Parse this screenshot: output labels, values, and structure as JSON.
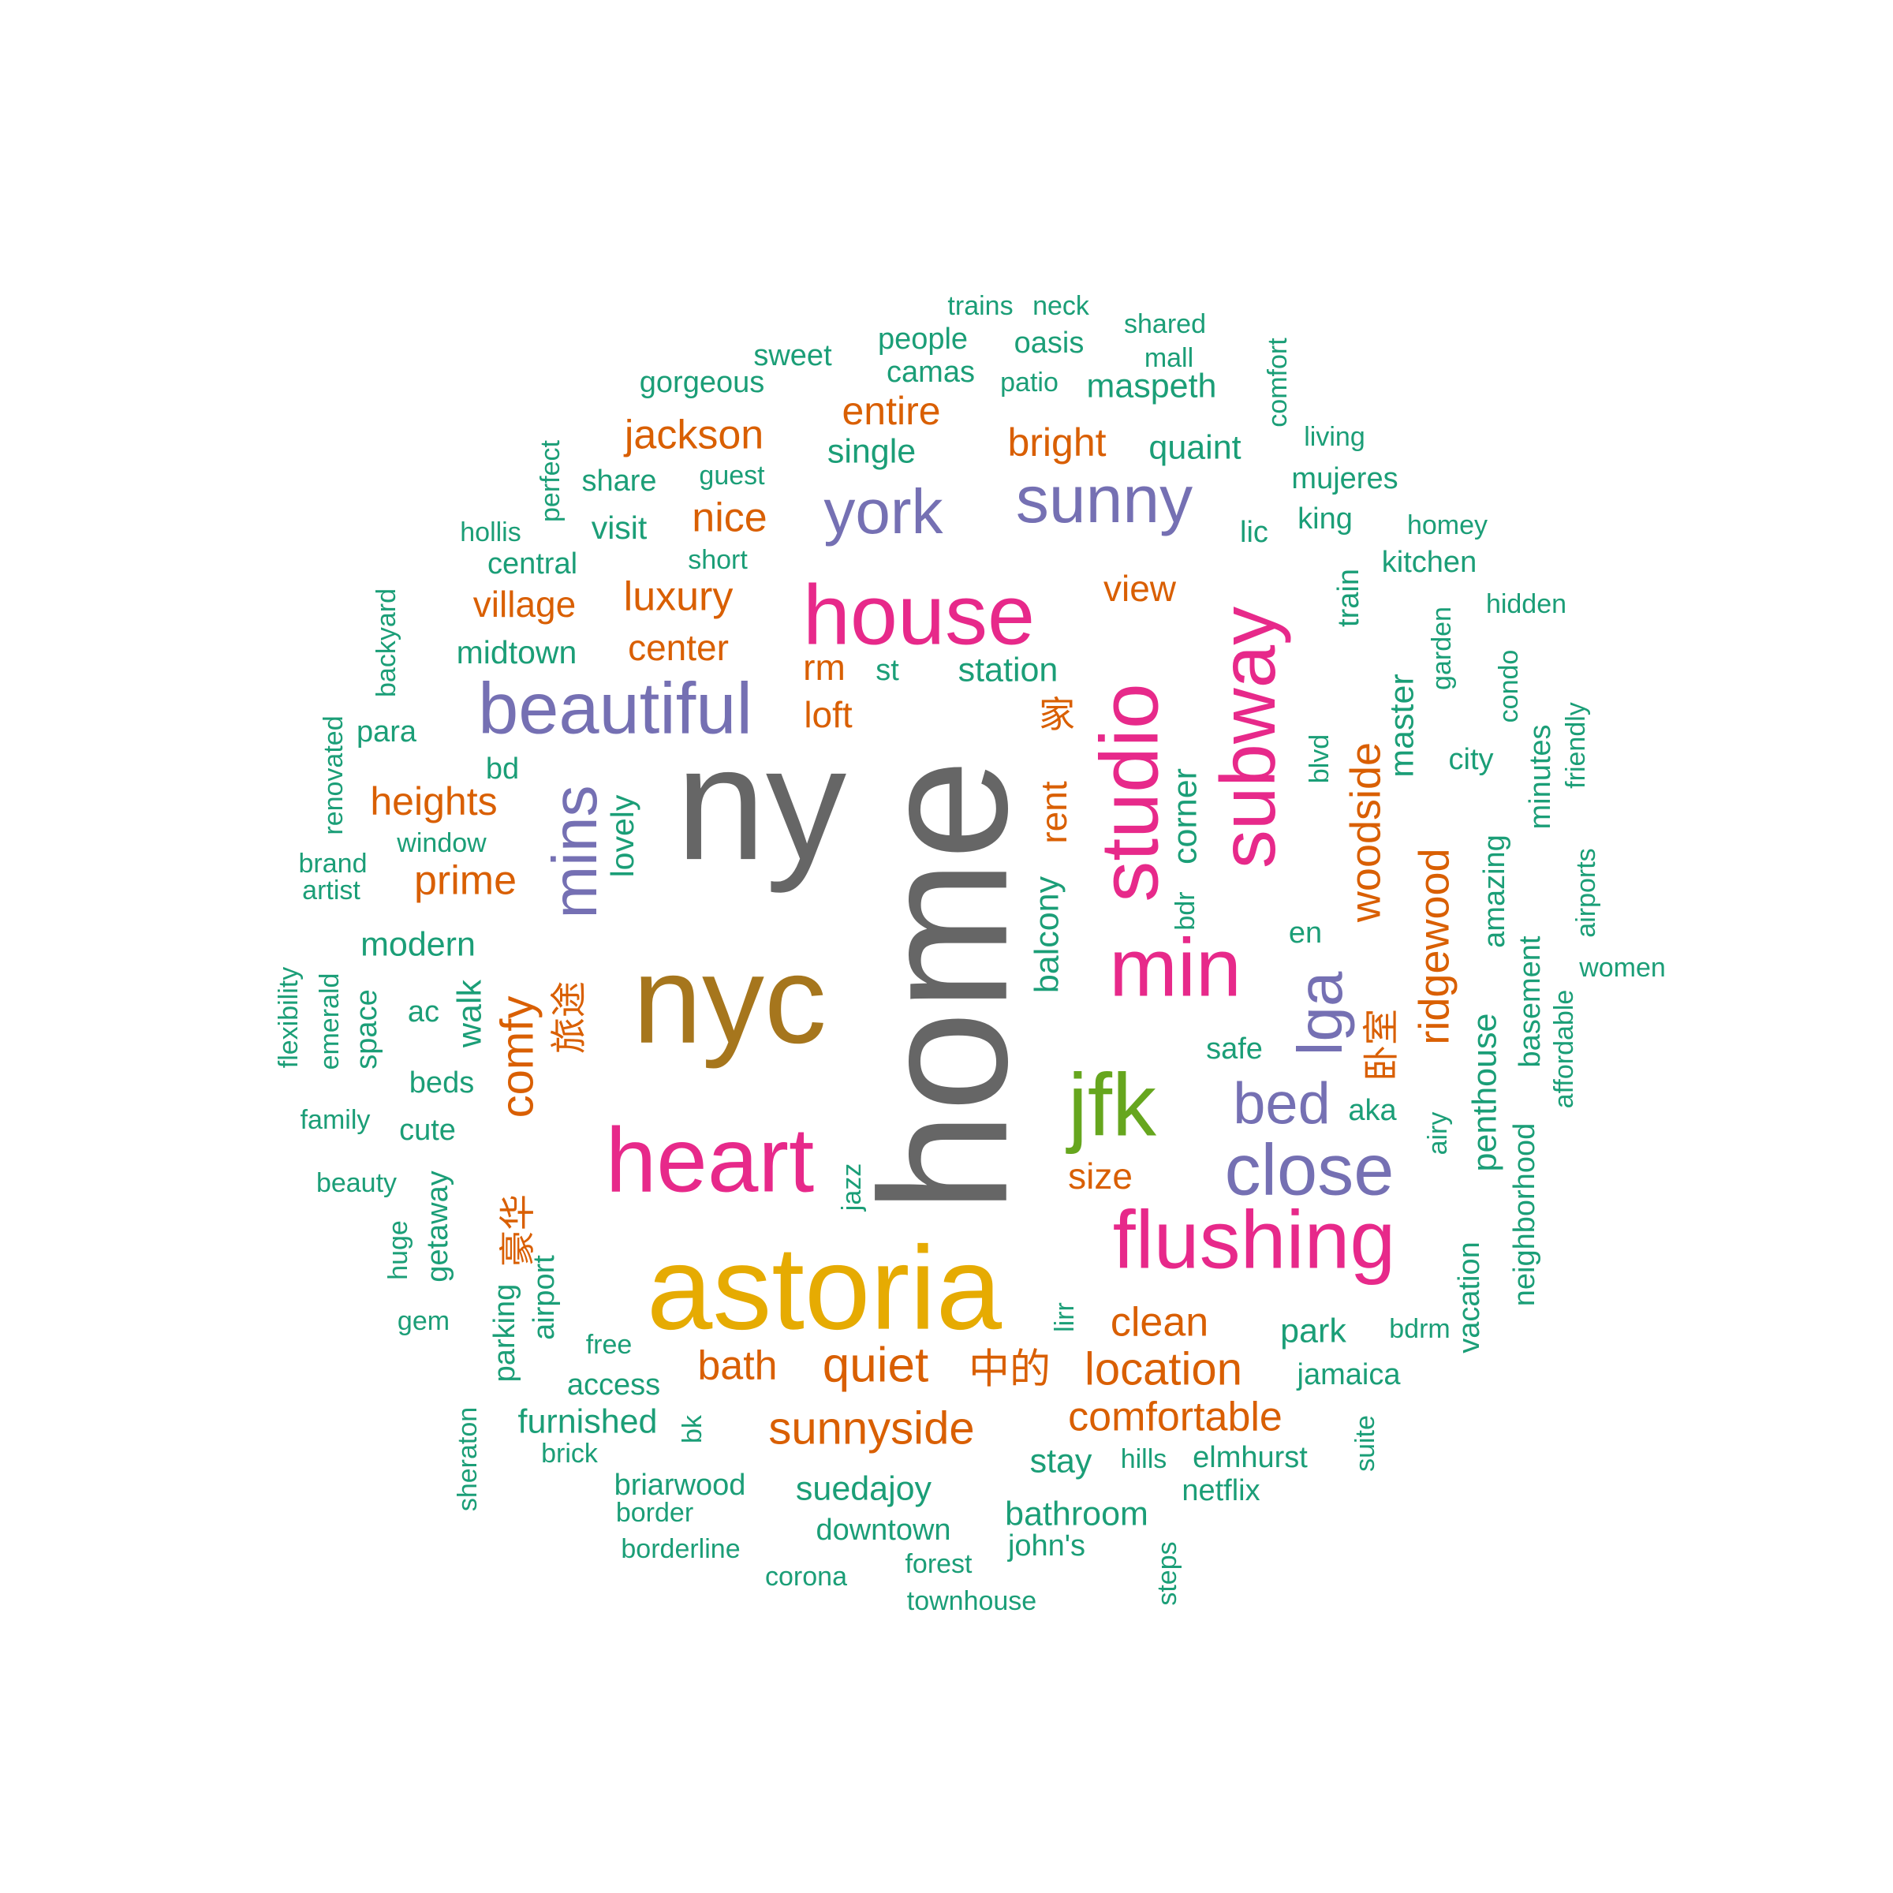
{
  "colors": {
    "gray": "#666666",
    "magenta": "#e7298a",
    "purple": "#7570b3",
    "mustard": "#a6761d",
    "gold": "#e6ab02",
    "green": "#66a61e",
    "orange": "#d95f02",
    "teal": "#1b9e77"
  },
  "words": [
    {
      "text": "home",
      "weight": 100,
      "color": "gray"
    },
    {
      "text": "ny",
      "weight": 62,
      "color": "gray"
    },
    {
      "text": "nyc",
      "weight": 48,
      "color": "mustard"
    },
    {
      "text": "astoria",
      "weight": 45,
      "color": "gold"
    },
    {
      "text": "heart",
      "weight": 35,
      "color": "magenta"
    },
    {
      "text": "house",
      "weight": 33,
      "color": "magenta"
    },
    {
      "text": "studio",
      "weight": 32,
      "color": "magenta"
    },
    {
      "text": "min",
      "weight": 32,
      "color": "magenta"
    },
    {
      "text": "jfk",
      "weight": 34,
      "color": "green"
    },
    {
      "text": "flushing",
      "weight": 32,
      "color": "magenta"
    },
    {
      "text": "subway",
      "weight": 30,
      "color": "magenta"
    },
    {
      "text": "beautiful",
      "weight": 28,
      "color": "purple"
    },
    {
      "text": "close",
      "weight": 28,
      "color": "purple"
    },
    {
      "text": "sunny",
      "weight": 25,
      "color": "purple"
    },
    {
      "text": "york",
      "weight": 24,
      "color": "purple"
    },
    {
      "text": "mins",
      "weight": 24,
      "color": "purple"
    },
    {
      "text": "lga",
      "weight": 24,
      "color": "purple"
    },
    {
      "text": "bed",
      "weight": 22,
      "color": "purple"
    },
    {
      "text": "quiet",
      "weight": 18,
      "color": "orange"
    },
    {
      "text": "sunnyside",
      "weight": 17,
      "color": "orange"
    },
    {
      "text": "location",
      "weight": 17,
      "color": "orange"
    },
    {
      "text": "comfy",
      "weight": 17,
      "color": "orange"
    },
    {
      "text": "ridgewood",
      "weight": 16,
      "color": "orange"
    },
    {
      "text": "woodside",
      "weight": 16,
      "color": "orange"
    },
    {
      "text": "comfortable",
      "weight": 15,
      "color": "orange"
    },
    {
      "text": "jackson",
      "weight": 15,
      "color": "orange"
    },
    {
      "text": "bath",
      "weight": 15,
      "color": "orange"
    },
    {
      "text": "中的",
      "weight": 15,
      "color": "orange"
    },
    {
      "text": "clean",
      "weight": 15,
      "color": "orange"
    },
    {
      "text": "nice",
      "weight": 15,
      "color": "orange"
    },
    {
      "text": "luxury",
      "weight": 15,
      "color": "orange"
    },
    {
      "text": "prime",
      "weight": 15,
      "color": "orange"
    },
    {
      "text": "heights",
      "weight": 14,
      "color": "orange"
    },
    {
      "text": "bright",
      "weight": 14,
      "color": "orange"
    },
    {
      "text": "entire",
      "weight": 14,
      "color": "orange"
    },
    {
      "text": "village",
      "weight": 13,
      "color": "orange"
    },
    {
      "text": "view",
      "weight": 13,
      "color": "orange"
    },
    {
      "text": "center",
      "weight": 13,
      "color": "orange"
    },
    {
      "text": "loft",
      "weight": 13,
      "color": "orange"
    },
    {
      "text": "rm",
      "weight": 13,
      "color": "orange"
    },
    {
      "text": "rent",
      "weight": 13,
      "color": "orange"
    },
    {
      "text": "size",
      "weight": 13,
      "color": "orange"
    },
    {
      "text": "卧室",
      "weight": 13,
      "color": "orange"
    },
    {
      "text": "旅途",
      "weight": 13,
      "color": "orange"
    },
    {
      "text": "豪华",
      "weight": 13,
      "color": "orange"
    },
    {
      "text": "家",
      "weight": 13,
      "color": "orange"
    },
    {
      "text": "modern",
      "weight": 12,
      "color": "teal"
    },
    {
      "text": "walk",
      "weight": 12,
      "color": "teal"
    },
    {
      "text": "station",
      "weight": 12,
      "color": "teal"
    },
    {
      "text": "single",
      "weight": 12,
      "color": "teal"
    },
    {
      "text": "quaint",
      "weight": 12,
      "color": "teal"
    },
    {
      "text": "maspeth",
      "weight": 12,
      "color": "teal"
    },
    {
      "text": "balcony",
      "weight": 12,
      "color": "teal"
    },
    {
      "text": "corner",
      "weight": 12,
      "color": "teal"
    },
    {
      "text": "master",
      "weight": 12,
      "color": "teal"
    },
    {
      "text": "penthouse",
      "weight": 12,
      "color": "teal"
    },
    {
      "text": "park",
      "weight": 12,
      "color": "teal"
    },
    {
      "text": "stay",
      "weight": 12,
      "color": "teal"
    },
    {
      "text": "suedajoy",
      "weight": 12,
      "color": "teal"
    },
    {
      "text": "bathroom",
      "weight": 12,
      "color": "teal"
    },
    {
      "text": "furnished",
      "weight": 12,
      "color": "teal"
    },
    {
      "text": "midtown",
      "weight": 11,
      "color": "teal"
    },
    {
      "text": "visit",
      "weight": 11,
      "color": "teal"
    },
    {
      "text": "lovely",
      "weight": 11,
      "color": "teal"
    },
    {
      "text": "sweet",
      "weight": 10,
      "color": "teal"
    },
    {
      "text": "gorgeous",
      "weight": 10,
      "color": "teal"
    },
    {
      "text": "people",
      "weight": 10,
      "color": "teal"
    },
    {
      "text": "camas",
      "weight": 10,
      "color": "teal"
    },
    {
      "text": "oasis",
      "weight": 10,
      "color": "teal"
    },
    {
      "text": "share",
      "weight": 10,
      "color": "teal"
    },
    {
      "text": "central",
      "weight": 10,
      "color": "teal"
    },
    {
      "text": "st",
      "weight": 10,
      "color": "teal"
    },
    {
      "text": "lic",
      "weight": 10,
      "color": "teal"
    },
    {
      "text": "mujeres",
      "weight": 10,
      "color": "teal"
    },
    {
      "text": "king",
      "weight": 10,
      "color": "teal"
    },
    {
      "text": "kitchen",
      "weight": 10,
      "color": "teal"
    },
    {
      "text": "train",
      "weight": 10,
      "color": "teal"
    },
    {
      "text": "city",
      "weight": 10,
      "color": "teal"
    },
    {
      "text": "bd",
      "weight": 10,
      "color": "teal"
    },
    {
      "text": "para",
      "weight": 10,
      "color": "teal"
    },
    {
      "text": "en",
      "weight": 10,
      "color": "teal"
    },
    {
      "text": "safe",
      "weight": 10,
      "color": "teal"
    },
    {
      "text": "aka",
      "weight": 10,
      "color": "teal"
    },
    {
      "text": "ac",
      "weight": 10,
      "color": "teal"
    },
    {
      "text": "space",
      "weight": 10,
      "color": "teal"
    },
    {
      "text": "beds",
      "weight": 10,
      "color": "teal"
    },
    {
      "text": "cute",
      "weight": 10,
      "color": "teal"
    },
    {
      "text": "getaway",
      "weight": 10,
      "color": "teal"
    },
    {
      "text": "airport",
      "weight": 10,
      "color": "teal"
    },
    {
      "text": "parking",
      "weight": 10,
      "color": "teal"
    },
    {
      "text": "access",
      "weight": 10,
      "color": "teal"
    },
    {
      "text": "jamaica",
      "weight": 10,
      "color": "teal"
    },
    {
      "text": "elmhurst",
      "weight": 10,
      "color": "teal"
    },
    {
      "text": "netflix",
      "weight": 10,
      "color": "teal"
    },
    {
      "text": "john's",
      "weight": 10,
      "color": "teal"
    },
    {
      "text": "downtown",
      "weight": 10,
      "color": "teal"
    },
    {
      "text": "briarwood",
      "weight": 10,
      "color": "teal"
    },
    {
      "text": "amazing",
      "weight": 10,
      "color": "teal"
    },
    {
      "text": "basement",
      "weight": 10,
      "color": "teal"
    },
    {
      "text": "neighborhood",
      "weight": 10,
      "color": "teal"
    },
    {
      "text": "vacation",
      "weight": 10,
      "color": "teal"
    },
    {
      "text": "minutes",
      "weight": 10,
      "color": "teal"
    },
    {
      "text": "trains",
      "weight": 9,
      "color": "teal"
    },
    {
      "text": "neck",
      "weight": 9,
      "color": "teal"
    },
    {
      "text": "shared",
      "weight": 9,
      "color": "teal"
    },
    {
      "text": "mall",
      "weight": 9,
      "color": "teal"
    },
    {
      "text": "patio",
      "weight": 9,
      "color": "teal"
    },
    {
      "text": "comfort",
      "weight": 9,
      "color": "teal"
    },
    {
      "text": "living",
      "weight": 9,
      "color": "teal"
    },
    {
      "text": "perfect",
      "weight": 9,
      "color": "teal"
    },
    {
      "text": "guest",
      "weight": 9,
      "color": "teal"
    },
    {
      "text": "hollis",
      "weight": 9,
      "color": "teal"
    },
    {
      "text": "short",
      "weight": 9,
      "color": "teal"
    },
    {
      "text": "homey",
      "weight": 9,
      "color": "teal"
    },
    {
      "text": "hidden",
      "weight": 9,
      "color": "teal"
    },
    {
      "text": "garden",
      "weight": 9,
      "color": "teal"
    },
    {
      "text": "condo",
      "weight": 9,
      "color": "teal"
    },
    {
      "text": "friendly",
      "weight": 9,
      "color": "teal"
    },
    {
      "text": "blvd",
      "weight": 9,
      "color": "teal"
    },
    {
      "text": "backyard",
      "weight": 9,
      "color": "teal"
    },
    {
      "text": "renovated",
      "weight": 9,
      "color": "teal"
    },
    {
      "text": "window",
      "weight": 9,
      "color": "teal"
    },
    {
      "text": "brand",
      "weight": 9,
      "color": "teal"
    },
    {
      "text": "artist",
      "weight": 9,
      "color": "teal"
    },
    {
      "text": "bdr",
      "weight": 9,
      "color": "teal"
    },
    {
      "text": "airports",
      "weight": 9,
      "color": "teal"
    },
    {
      "text": "women",
      "weight": 9,
      "color": "teal"
    },
    {
      "text": "affordable",
      "weight": 9,
      "color": "teal"
    },
    {
      "text": "airy",
      "weight": 9,
      "color": "teal"
    },
    {
      "text": "flexibility",
      "weight": 9,
      "color": "teal"
    },
    {
      "text": "emerald",
      "weight": 9,
      "color": "teal"
    },
    {
      "text": "family",
      "weight": 9,
      "color": "teal"
    },
    {
      "text": "beauty",
      "weight": 9,
      "color": "teal"
    },
    {
      "text": "huge",
      "weight": 9,
      "color": "teal"
    },
    {
      "text": "gem",
      "weight": 9,
      "color": "teal"
    },
    {
      "text": "jazz",
      "weight": 9,
      "color": "teal"
    },
    {
      "text": "lirr",
      "weight": 9,
      "color": "teal"
    },
    {
      "text": "free",
      "weight": 9,
      "color": "teal"
    },
    {
      "text": "bdrm",
      "weight": 9,
      "color": "teal"
    },
    {
      "text": "sheraton",
      "weight": 9,
      "color": "teal"
    },
    {
      "text": "brick",
      "weight": 9,
      "color": "teal"
    },
    {
      "text": "bk",
      "weight": 9,
      "color": "teal"
    },
    {
      "text": "hills",
      "weight": 9,
      "color": "teal"
    },
    {
      "text": "suite",
      "weight": 9,
      "color": "teal"
    },
    {
      "text": "border",
      "weight": 9,
      "color": "teal"
    },
    {
      "text": "borderline",
      "weight": 9,
      "color": "teal"
    },
    {
      "text": "corona",
      "weight": 9,
      "color": "teal"
    },
    {
      "text": "forest",
      "weight": 9,
      "color": "teal"
    },
    {
      "text": "townhouse",
      "weight": 9,
      "color": "teal"
    },
    {
      "text": "steps",
      "weight": 9,
      "color": "teal"
    }
  ]
}
